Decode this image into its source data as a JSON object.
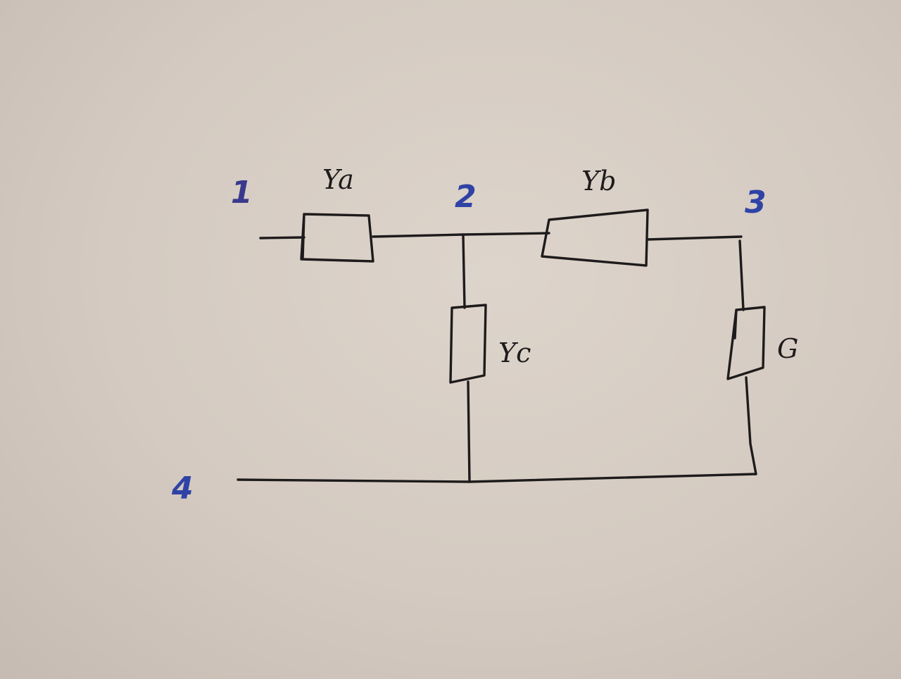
{
  "diagram": {
    "nodes": [
      {
        "id": "n1",
        "label": "1"
      },
      {
        "id": "n2",
        "label": "2"
      },
      {
        "id": "n3",
        "label": "3"
      },
      {
        "id": "n4",
        "label": "4"
      }
    ],
    "components": [
      {
        "id": "ya",
        "label": "Ya",
        "from": "1",
        "to": "2"
      },
      {
        "id": "yb",
        "label": "Yb",
        "from": "2",
        "to": "3"
      },
      {
        "id": "yc",
        "label": "Yc",
        "from": "2",
        "to": "4"
      },
      {
        "id": "g",
        "label": "G",
        "from": "3",
        "to": "4"
      }
    ]
  },
  "colors": {
    "paper": "#d9d0c7",
    "ink": "#1e1b1c",
    "node_ink": "#2f43a6",
    "node_1_ink": "#3a3a8c"
  }
}
